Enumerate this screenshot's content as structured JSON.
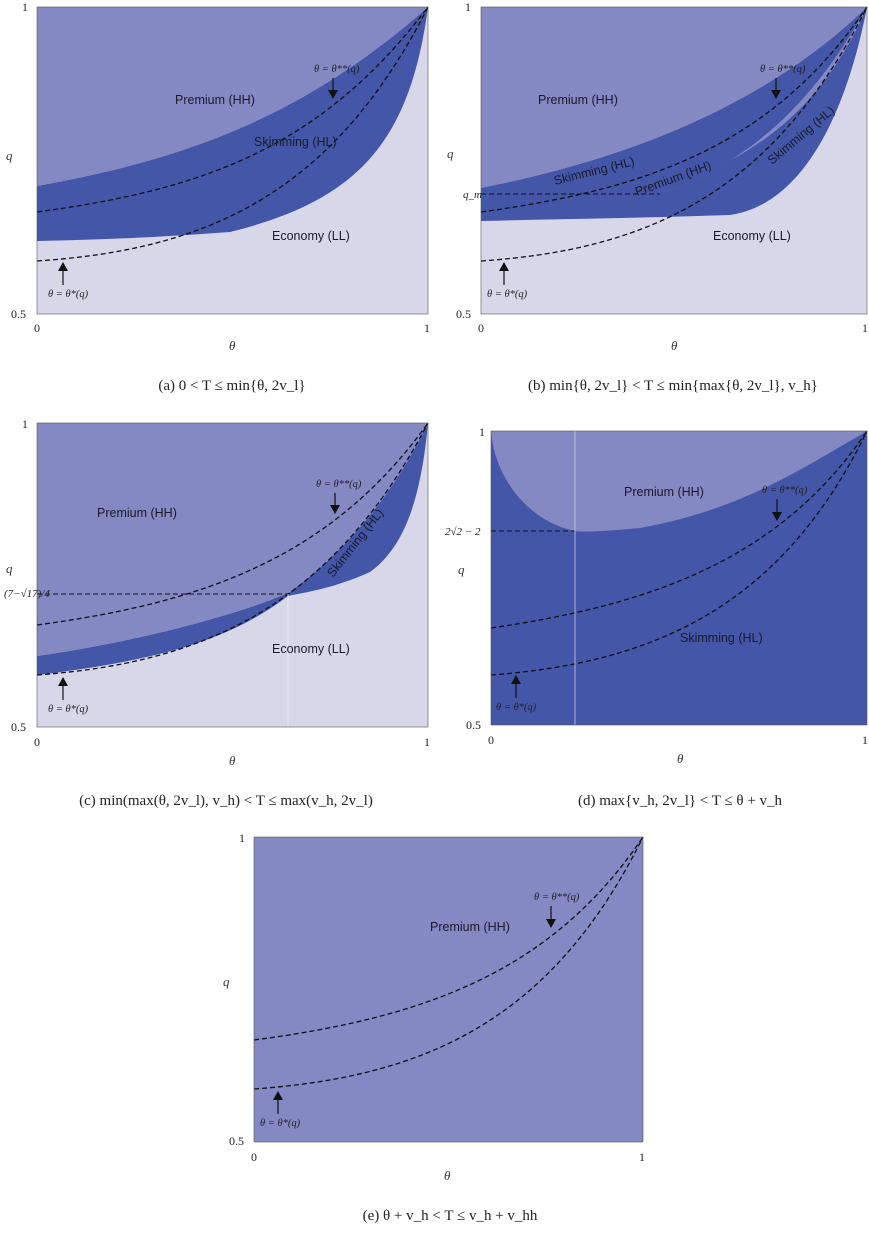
{
  "chart_data": [
    {
      "type": "area",
      "caption": "(a)  0 < T ≤ min{θ, 2v_l}",
      "xlabel": "θ",
      "ylabel": "q",
      "xlim": [
        0,
        1
      ],
      "ylim": [
        0.5,
        1
      ],
      "x_ticks": [
        "0",
        "1"
      ],
      "y_ticks": [
        "0.5",
        "1"
      ],
      "regions": [
        {
          "label": "Premium (HH)",
          "color": "#8488c3"
        },
        {
          "label": "Skimming (HL)",
          "color": "#4456a8"
        },
        {
          "label": "Economy (LL)",
          "color": "#d8d7ea"
        }
      ],
      "boundaries": [
        {
          "name": "HH/HL",
          "x": [
            0,
            0.25,
            0.5,
            0.75,
            1
          ],
          "y": [
            0.69,
            0.73,
            0.78,
            0.86,
            1
          ]
        },
        {
          "name": "HL/LL",
          "x": [
            0,
            0.25,
            0.5,
            0.75,
            0.9,
            1
          ],
          "y": [
            0.62,
            0.63,
            0.65,
            0.7,
            0.77,
            1
          ]
        }
      ],
      "curves": [
        {
          "name": "θ = θ**(q)",
          "x": [
            0,
            0.25,
            0.5,
            0.75,
            1
          ],
          "y": [
            0.66,
            0.69,
            0.74,
            0.83,
            1
          ]
        },
        {
          "name": "θ = θ*(q)",
          "x": [
            0,
            0.25,
            0.5,
            0.75,
            1
          ],
          "y": [
            0.585,
            0.6,
            0.65,
            0.76,
            1
          ]
        }
      ],
      "annotations": [
        "θ = θ**(q)",
        "θ = θ*(q)"
      ]
    },
    {
      "type": "area",
      "caption": "(b)  min{θ, 2v_l} < T ≤ min{max{θ, 2v_l}, v_h}",
      "xlabel": "θ",
      "ylabel": "q",
      "xlim": [
        0,
        1
      ],
      "ylim": [
        0.5,
        1
      ],
      "x_ticks": [
        "0",
        "1"
      ],
      "y_ticks": [
        "0.5",
        "q_m",
        "1"
      ],
      "y_marker": {
        "label": "q_m",
        "y": 0.69
      },
      "regions": [
        {
          "label": "Premium (HH)",
          "color": "#8488c3"
        },
        {
          "label": "Skimming (HL)",
          "color": "#4456a8"
        },
        {
          "label": "Premium (HH)",
          "color": "#8488c3"
        },
        {
          "label": "Skimming (HL)",
          "color": "#4456a8"
        },
        {
          "label": "Economy (LL)",
          "color": "#d8d7ea"
        }
      ],
      "curves": [
        {
          "name": "θ = θ**(q)",
          "x": [
            0,
            0.25,
            0.5,
            0.75,
            1
          ],
          "y": [
            0.67,
            0.7,
            0.75,
            0.84,
            1
          ]
        },
        {
          "name": "θ = θ*(q)",
          "x": [
            0,
            0.25,
            0.5,
            0.75,
            1
          ],
          "y": [
            0.585,
            0.6,
            0.65,
            0.76,
            1
          ]
        }
      ],
      "annotations": [
        "θ = θ**(q)",
        "θ = θ*(q)"
      ]
    },
    {
      "type": "area",
      "caption": "(c)  min(max(θ, 2v_l), v_h) < T ≤ max(v_h, 2v_l)",
      "xlabel": "θ",
      "ylabel": "q",
      "xlim": [
        0,
        1
      ],
      "ylim": [
        0.5,
        1
      ],
      "x_ticks": [
        "0",
        "1"
      ],
      "y_ticks": [
        "0.5",
        "(7−√17)/4",
        "1"
      ],
      "y_marker": {
        "label": "(7−√17)/4",
        "y": 0.7192
      },
      "regions": [
        {
          "label": "Premium (HH)",
          "color": "#8488c3"
        },
        {
          "label": "Skimming (HL)",
          "color": "#4456a8"
        },
        {
          "label": "Economy (LL)",
          "color": "#d8d7ea"
        }
      ],
      "curves": [
        {
          "name": "θ = θ**(q)",
          "x": [
            0,
            0.25,
            0.5,
            0.75,
            1
          ],
          "y": [
            0.67,
            0.7,
            0.75,
            0.84,
            1
          ]
        },
        {
          "name": "θ = θ*(q)",
          "x": [
            0,
            0.25,
            0.5,
            0.75,
            1
          ],
          "y": [
            0.585,
            0.6,
            0.65,
            0.76,
            1
          ]
        }
      ],
      "annotations": [
        "θ = θ**(q)",
        "θ = θ*(q)"
      ]
    },
    {
      "type": "area",
      "caption": "(d)  max{v_h, 2v_l} < T ≤ θ + v_h",
      "xlabel": "θ",
      "ylabel": "q",
      "xlim": [
        0,
        1
      ],
      "ylim": [
        0.5,
        1
      ],
      "x_ticks": [
        "0",
        "1"
      ],
      "y_ticks": [
        "0.5",
        "2√2 − 2",
        "1"
      ],
      "y_marker": {
        "label": "2√2 − 2",
        "y": 0.8284
      },
      "regions": [
        {
          "label": "Premium (HH)",
          "color": "#8488c3"
        },
        {
          "label": "Skimming (HL)",
          "color": "#4456a8"
        }
      ],
      "curves": [
        {
          "name": "θ = θ**(q)",
          "x": [
            0,
            0.25,
            0.5,
            0.75,
            1
          ],
          "y": [
            0.67,
            0.7,
            0.75,
            0.84,
            1
          ]
        },
        {
          "name": "θ = θ*(q)",
          "x": [
            0,
            0.25,
            0.5,
            0.75,
            1
          ],
          "y": [
            0.585,
            0.6,
            0.65,
            0.76,
            1
          ]
        }
      ],
      "annotations": [
        "θ = θ**(q)",
        "θ = θ*(q)"
      ]
    },
    {
      "type": "area",
      "caption": "(e)  θ + v_h < T ≤ v_h + v_hh",
      "xlabel": "θ",
      "ylabel": "q",
      "xlim": [
        0,
        1
      ],
      "ylim": [
        0.5,
        1
      ],
      "x_ticks": [
        "0",
        "1"
      ],
      "y_ticks": [
        "0.5",
        "1"
      ],
      "regions": [
        {
          "label": "Premium (HH)",
          "color": "#8488c3"
        }
      ],
      "curves": [
        {
          "name": "θ = θ**(q)",
          "x": [
            0,
            0.25,
            0.5,
            0.75,
            1
          ],
          "y": [
            0.67,
            0.7,
            0.75,
            0.84,
            1
          ]
        },
        {
          "name": "θ = θ*(q)",
          "x": [
            0,
            0.25,
            0.5,
            0.75,
            1
          ],
          "y": [
            0.585,
            0.6,
            0.65,
            0.76,
            1
          ]
        }
      ],
      "annotations": [
        "θ = θ**(q)",
        "θ = θ*(q)"
      ]
    }
  ]
}
